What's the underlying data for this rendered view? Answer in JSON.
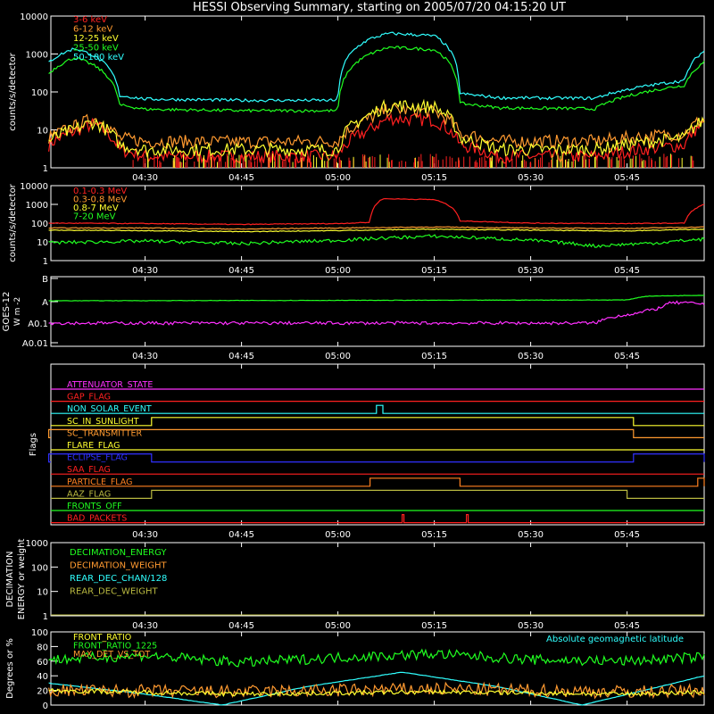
{
  "title": "HESSI Observing Summary, starting on 2005/07/20 04:15:20 UT",
  "colors": {
    "background": "#000000",
    "axes": "#ffffff",
    "red": "#ff2020",
    "orange": "#ff9a30",
    "yellow": "#ffff30",
    "green": "#20ff20",
    "cyan": "#30ffff",
    "magenta": "#ff30ff",
    "blue": "#3030ff",
    "olive": "#b8b840",
    "dkorange": "#ff8020"
  },
  "chart_data": [
    {
      "type": "line",
      "ylabel": "counts/s/detector",
      "yscale": "log",
      "ylim": [
        1,
        10000
      ],
      "xlim": [
        "04:15:20",
        "05:57:00"
      ],
      "xticks": [
        "04:30",
        "04:45",
        "05:00",
        "05:15",
        "05:30",
        "05:45"
      ],
      "yticks": [
        "1",
        "10",
        "100",
        "1000",
        "10000"
      ],
      "legend": "top-left",
      "series": [
        {
          "name": "3-6 keV",
          "color": "#ff2020",
          "points": [
            [
              "04:15",
              4
            ],
            [
              "04:19",
              9
            ],
            [
              "04:22",
              14
            ],
            [
              "04:26",
              3
            ],
            [
              "04:30",
              2
            ],
            [
              "04:45",
              2
            ],
            [
              "05:00",
              2
            ],
            [
              "05:05",
              10
            ],
            [
              "05:08",
              20
            ],
            [
              "05:15",
              18
            ],
            [
              "05:19",
              4
            ],
            [
              "05:25",
              2
            ],
            [
              "05:40",
              2
            ],
            [
              "05:54",
              4
            ],
            [
              "05:57",
              15
            ]
          ]
        },
        {
          "name": "6-12 keV",
          "color": "#ff9a30",
          "points": [
            [
              "04:15",
              6
            ],
            [
              "04:19",
              12
            ],
            [
              "04:22",
              20
            ],
            [
              "04:26",
              6
            ],
            [
              "04:30",
              5
            ],
            [
              "04:45",
              4.8
            ],
            [
              "05:00",
              5
            ],
            [
              "05:05",
              20
            ],
            [
              "05:08",
              35
            ],
            [
              "05:15",
              30
            ],
            [
              "05:19",
              8
            ],
            [
              "05:25",
              5
            ],
            [
              "05:40",
              5
            ],
            [
              "05:54",
              8
            ],
            [
              "05:57",
              20
            ]
          ]
        },
        {
          "name": "12-25 keV",
          "color": "#ffff30",
          "points": [
            [
              "04:15",
              5
            ],
            [
              "04:19",
              10
            ],
            [
              "04:22",
              16
            ],
            [
              "04:26",
              4
            ],
            [
              "04:30",
              3
            ],
            [
              "04:45",
              3
            ],
            [
              "05:00",
              3
            ],
            [
              "05:05",
              25
            ],
            [
              "05:08",
              45
            ],
            [
              "05:15",
              40
            ],
            [
              "05:19",
              6
            ],
            [
              "05:25",
              3
            ],
            [
              "05:40",
              3
            ],
            [
              "05:54",
              6
            ],
            [
              "05:57",
              18
            ]
          ]
        },
        {
          "name": "25-50 keV",
          "color": "#20ff20",
          "points": [
            [
              "04:15",
              300
            ],
            [
              "04:19",
              800
            ],
            [
              "04:22",
              500
            ],
            [
              "04:26",
              45
            ],
            [
              "04:30",
              35
            ],
            [
              "04:45",
              32
            ],
            [
              "05:00",
              32
            ],
            [
              "05:05",
              1000
            ],
            [
              "05:08",
              1500
            ],
            [
              "05:15",
              1300
            ],
            [
              "05:19",
              50
            ],
            [
              "05:25",
              38
            ],
            [
              "05:40",
              36
            ],
            [
              "05:54",
              150
            ],
            [
              "05:57",
              600
            ]
          ]
        },
        {
          "name": "50-100 keV",
          "color": "#30ffff",
          "points": [
            [
              "04:15",
              600
            ],
            [
              "04:19",
              1400
            ],
            [
              "04:22",
              900
            ],
            [
              "04:26",
              80
            ],
            [
              "04:30",
              65
            ],
            [
              "04:45",
              60
            ],
            [
              "05:00",
              60
            ],
            [
              "05:05",
              2500
            ],
            [
              "05:08",
              3500
            ],
            [
              "05:15",
              3000
            ],
            [
              "05:19",
              90
            ],
            [
              "05:25",
              70
            ],
            [
              "05:40",
              68
            ],
            [
              "05:54",
              200
            ],
            [
              "05:57",
              1200
            ]
          ]
        }
      ]
    },
    {
      "type": "line",
      "ylabel": "counts/s/detector",
      "yscale": "log",
      "ylim": [
        1,
        10000
      ],
      "xticks": [
        "04:30",
        "04:45",
        "05:00",
        "05:15",
        "05:30",
        "05:45"
      ],
      "yticks": [
        "1",
        "10",
        "100",
        "1000",
        "10000"
      ],
      "legend": "top-left",
      "series": [
        {
          "name": "0.1-0.3 MeV",
          "color": "#ff2020",
          "points": [
            [
              "04:15",
              100
            ],
            [
              "04:30",
              95
            ],
            [
              "04:45",
              85
            ],
            [
              "05:00",
              95
            ],
            [
              "05:05",
              110
            ],
            [
              "05:07",
              2000
            ],
            [
              "05:15",
              1800
            ],
            [
              "05:19",
              130
            ],
            [
              "05:30",
              100
            ],
            [
              "05:45",
              95
            ],
            [
              "05:54",
              100
            ],
            [
              "05:57",
              1000
            ]
          ]
        },
        {
          "name": "0.3-0.8 MeV",
          "color": "#ff9a30",
          "points": [
            [
              "04:15",
              55
            ],
            [
              "04:30",
              55
            ],
            [
              "04:45",
              48
            ],
            [
              "05:00",
              55
            ],
            [
              "05:15",
              62
            ],
            [
              "05:30",
              55
            ],
            [
              "05:45",
              52
            ],
            [
              "05:57",
              62
            ]
          ]
        },
        {
          "name": "0.8-7 MeV",
          "color": "#ffff30",
          "points": [
            [
              "04:15",
              42
            ],
            [
              "04:30",
              40
            ],
            [
              "04:45",
              35
            ],
            [
              "05:00",
              40
            ],
            [
              "05:15",
              48
            ],
            [
              "05:30",
              42
            ],
            [
              "05:45",
              38
            ],
            [
              "05:57",
              48
            ]
          ]
        },
        {
          "name": "7-20 MeV",
          "color": "#20ff20",
          "points": [
            [
              "04:15",
              9
            ],
            [
              "04:30",
              11
            ],
            [
              "04:45",
              8
            ],
            [
              "05:00",
              12
            ],
            [
              "05:15",
              20
            ],
            [
              "05:30",
              12
            ],
            [
              "05:40",
              6
            ],
            [
              "05:50",
              9
            ],
            [
              "05:57",
              14
            ]
          ]
        }
      ]
    },
    {
      "type": "line",
      "ylabel": "GOES-12",
      "ylabel_units": [
        "W",
        "m",
        "-2"
      ],
      "yscale": "log",
      "ylim": [
        1e-09,
        1e-06
      ],
      "xticks": [
        "04:30",
        "04:45",
        "05:00",
        "05:15",
        "05:30",
        "05:45"
      ],
      "yticks": [
        "A0.01",
        "A0.1",
        "A",
        "B"
      ],
      "series": [
        {
          "name": "GOES long",
          "color": "#20ff20",
          "points": [
            [
              "04:15",
              1.1e-08
            ],
            [
              "05:45",
              1.2e-08
            ],
            [
              "05:48",
              1.8e-08
            ],
            [
              "05:57",
              2e-08
            ]
          ]
        },
        {
          "name": "GOES short",
          "color": "#ff30ff",
          "points": [
            [
              "04:15",
              1e-09
            ],
            [
              "05:40",
              1e-09
            ],
            [
              "05:43",
              2e-09
            ],
            [
              "05:47",
              3e-09
            ],
            [
              "05:50",
              5e-09
            ],
            [
              "05:52",
              9e-09
            ],
            [
              "05:57",
              8e-09
            ]
          ]
        }
      ]
    },
    {
      "type": "line",
      "ylabel": "Flags",
      "flags": [
        {
          "name": "ATTENUATOR_STATE",
          "color": "#ff30ff",
          "on": []
        },
        {
          "name": "GAP_FLAG",
          "color": "#ff2020",
          "on": []
        },
        {
          "name": "NON_SOLAR_EVENT",
          "color": "#30ffff",
          "on": [
            [
              "05:06",
              "05:07"
            ]
          ]
        },
        {
          "name": "SC_IN_SUNLIGHT",
          "color": "#ffff30",
          "on": [
            [
              "04:31",
              "05:46"
            ]
          ]
        },
        {
          "name": "SC_TRANSMITTER",
          "color": "#ff9a30",
          "on": [
            [
              "04:15",
              "05:46"
            ]
          ]
        },
        {
          "name": "FLARE_FLAG",
          "color": "#ffff30",
          "on": []
        },
        {
          "name": "ECLIPSE_FLAG",
          "color": "#3030ff",
          "on": [
            [
              "04:15",
              "04:31"
            ],
            [
              "05:46",
              "05:57"
            ]
          ]
        },
        {
          "name": "SAA_FLAG",
          "color": "#ff2020",
          "on": []
        },
        {
          "name": "PARTICLE_FLAG",
          "color": "#ff8020",
          "on": [
            [
              "05:05",
              "05:19"
            ],
            [
              "05:56",
              "05:57"
            ]
          ]
        },
        {
          "name": "AAZ_FLAG",
          "color": "#b8b840",
          "on": [
            [
              "04:31",
              "05:45"
            ]
          ]
        },
        {
          "name": "FRONTS_OFF",
          "color": "#20ff20",
          "on": []
        },
        {
          "name": "BAD_PACKETS",
          "color": "#ff2020",
          "on": [
            [
              "05:10",
              "05:10"
            ],
            [
              "05:20",
              "05:20"
            ]
          ]
        }
      ]
    },
    {
      "type": "line",
      "ylabel": "DECIMATION ENERGY or weight",
      "yscale": "log",
      "ylim": [
        1,
        1000
      ],
      "xticks": [
        "04:30",
        "04:45",
        "05:00",
        "05:15",
        "05:30",
        "05:45"
      ],
      "yticks": [
        "1",
        "10",
        "100",
        "1000"
      ],
      "series": [
        {
          "name": "DECIMATION_ENERGY",
          "color": "#20ff20",
          "points": []
        },
        {
          "name": "DECIMATION_WEIGHT",
          "color": "#ff9a30",
          "points": []
        },
        {
          "name": "REAR_DEC_CHAN/128",
          "color": "#30ffff",
          "points": []
        },
        {
          "name": "REAR_DEC_WEIGHT",
          "color": "#b8b840",
          "points": []
        }
      ]
    },
    {
      "type": "line",
      "ylabel": "Degrees or %",
      "ylim": [
        0,
        100
      ],
      "xticks": [
        "04:30",
        "04:45",
        "05:00",
        "05:15",
        "05:30",
        "05:45"
      ],
      "yticks": [
        "0",
        "20",
        "40",
        "60",
        "80",
        "100"
      ],
      "annotation": "Absolute geomagnetic latitude",
      "series": [
        {
          "name": "FRONT_RATIO",
          "color": "#ffff30",
          "points": [
            [
              "04:15",
              20
            ],
            [
              "04:45",
              15
            ],
            [
              "05:15",
              18
            ],
            [
              "05:45",
              15
            ],
            [
              "05:57",
              18
            ]
          ]
        },
        {
          "name": "FRONT_RATIO_1225",
          "color": "#20ff20",
          "points": [
            [
              "04:15",
              62
            ],
            [
              "04:30",
              68
            ],
            [
              "04:45",
              58
            ],
            [
              "05:00",
              65
            ],
            [
              "05:15",
              70
            ],
            [
              "05:30",
              62
            ],
            [
              "05:45",
              60
            ],
            [
              "05:57",
              66
            ]
          ]
        },
        {
          "name": "MAX_DET_VS_TOT",
          "color": "#ff9a30",
          "points": [
            [
              "04:15",
              20
            ],
            [
              "04:45",
              18
            ],
            [
              "05:15",
              22
            ],
            [
              "05:45",
              18
            ],
            [
              "05:57",
              20
            ]
          ]
        },
        {
          "name": "Absolute geomagnetic latitude",
          "color": "#30ffff",
          "points": [
            [
              "04:15",
              30
            ],
            [
              "04:30",
              15
            ],
            [
              "04:42",
              0
            ],
            [
              "04:55",
              25
            ],
            [
              "05:10",
              45
            ],
            [
              "05:25",
              25
            ],
            [
              "05:38",
              0
            ],
            [
              "05:50",
              25
            ],
            [
              "05:57",
              40
            ]
          ]
        }
      ]
    }
  ]
}
